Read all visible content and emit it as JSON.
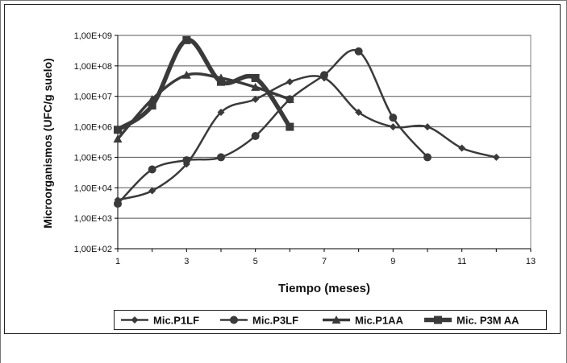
{
  "chart_data": {
    "type": "line",
    "title": "",
    "xlabel": "Tiempo (meses)",
    "ylabel": "Microorganismos (UFC/g suelo)",
    "y_scale": "log",
    "xlim": [
      1,
      13
    ],
    "ylim": [
      100,
      1000000000
    ],
    "x_ticks": [
      "1",
      "3",
      "5",
      "7",
      "9",
      "11",
      "13"
    ],
    "y_ticks": [
      "1,00E+02",
      "1,00E+03",
      "1,00E+04",
      "1,00E+05",
      "1,00E+06",
      "1,00E+07",
      "1,00E+08",
      "1,00E+09"
    ],
    "grid": "horizontal",
    "legend_position": "bottom",
    "series": [
      {
        "name": "Mic.P1LF",
        "marker": "diamond",
        "x": [
          1,
          2,
          3,
          4,
          5,
          6,
          7,
          8,
          9,
          10,
          11,
          12
        ],
        "y": [
          4000,
          8000,
          60000,
          3000000,
          8000000,
          30000000,
          40000000,
          3000000,
          1000000,
          1000000,
          200000,
          100000
        ]
      },
      {
        "name": "Mic.P3LF",
        "marker": "circle",
        "x": [
          1,
          2,
          3,
          4,
          5,
          6,
          7,
          8,
          9,
          10
        ],
        "y": [
          3000,
          40000,
          80000,
          100000,
          500000,
          8000000,
          50000000,
          300000000,
          2000000,
          100000
        ]
      },
      {
        "name": "Mic.P1AA",
        "marker": "triangle",
        "x": [
          1,
          2,
          3,
          4,
          5,
          6
        ],
        "y": [
          400000,
          8000000,
          50000000,
          40000000,
          20000000,
          8000000
        ]
      },
      {
        "name": "Mic. P3M AA",
        "marker": "square",
        "x": [
          1,
          2,
          3,
          4,
          5,
          6
        ],
        "y": [
          800000,
          5000000,
          700000000,
          30000000,
          40000000,
          1000000
        ]
      }
    ]
  }
}
